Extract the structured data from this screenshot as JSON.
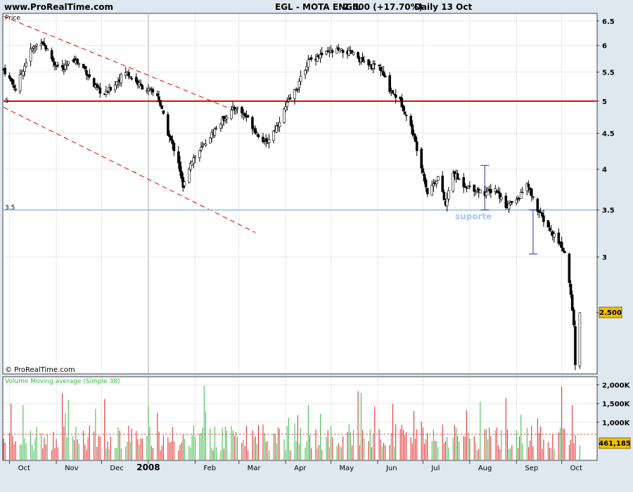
{
  "header": {
    "site": "www.ProRealTime.com",
    "instrument": "EGL - MOTA ENGIL",
    "last": "2.500 (+17.70%)",
    "period": "Daily  13 Oct"
  },
  "price_panel": {
    "label": "Price",
    "watermark": "© ProRealTime.com",
    "annotation": "suporte",
    "last_price_badge": "2.500",
    "left_marks": [
      "5",
      "3.5"
    ]
  },
  "volume_panel": {
    "label": "Volume Moving average (Simple 38)",
    "last_volume_badge": "461,185"
  },
  "colors": {
    "background": "#dfe8f1",
    "panel": "#ffffff",
    "up": "#38b648",
    "down": "#e02020",
    "resistance": "#e00000",
    "support": "#a8c8ee",
    "badge": "#f0c000"
  },
  "chart_data": [
    {
      "type": "candlestick",
      "title": "EGL - MOTA ENGIL",
      "scale": "log",
      "ylim": [
        2.05,
        6.65
      ],
      "yticks": [
        2.5,
        3,
        3.5,
        4,
        4.5,
        5,
        5.5,
        6,
        6.5
      ],
      "ytick_labels": [
        "2.500",
        "3",
        "3.5",
        "4",
        "4.5",
        "5",
        "5.5",
        "6",
        "6.5"
      ],
      "x_labels": [
        "Oct",
        "Nov",
        "Dec",
        "2008",
        "Feb",
        "Mar",
        "Apr",
        "May",
        "Jun",
        "Jul",
        "Aug",
        "Sep",
        "Oct"
      ],
      "x_dates": [
        "2007-10-01",
        "2007-11-01",
        "2007-12-01",
        "2008-01-01",
        "2008-02-01",
        "2008-03-01",
        "2008-04-01",
        "2008-05-01",
        "2008-06-01",
        "2008-07-01",
        "2008-08-01",
        "2008-09-01",
        "2008-10-01"
      ],
      "xlim": [
        "2007-09-27",
        "2008-10-24"
      ],
      "last_value": 2.5,
      "last_change": "+17.70%",
      "close_path": [
        [
          "2007-09-27",
          5.55
        ],
        [
          "2007-10-05",
          5.2
        ],
        [
          "2007-10-15",
          5.9
        ],
        [
          "2007-10-22",
          6.1
        ],
        [
          "2007-10-31",
          5.65
        ],
        [
          "2007-11-06",
          5.55
        ],
        [
          "2007-11-12",
          5.75
        ],
        [
          "2007-11-20",
          5.55
        ],
        [
          "2007-11-26",
          5.25
        ],
        [
          "2007-12-03",
          5.1
        ],
        [
          "2007-12-10",
          5.3
        ],
        [
          "2007-12-17",
          5.5
        ],
        [
          "2007-12-27",
          5.25
        ],
        [
          "2008-01-07",
          5.1
        ],
        [
          "2008-01-14",
          4.5
        ],
        [
          "2008-01-21",
          4.1
        ],
        [
          "2008-01-24",
          3.75
        ],
        [
          "2008-01-29",
          4.1
        ],
        [
          "2008-02-06",
          4.3
        ],
        [
          "2008-02-14",
          4.55
        ],
        [
          "2008-02-21",
          4.75
        ],
        [
          "2008-02-28",
          4.9
        ],
        [
          "2008-03-06",
          4.75
        ],
        [
          "2008-03-13",
          4.5
        ],
        [
          "2008-03-19",
          4.35
        ],
        [
          "2008-03-26",
          4.6
        ],
        [
          "2008-04-02",
          4.95
        ],
        [
          "2008-04-09",
          5.25
        ],
        [
          "2008-04-16",
          5.7
        ],
        [
          "2008-04-23",
          5.8
        ],
        [
          "2008-05-05",
          5.9
        ],
        [
          "2008-05-15",
          5.85
        ],
        [
          "2008-05-26",
          5.6
        ],
        [
          "2008-06-02",
          5.6
        ],
        [
          "2008-06-09",
          5.2
        ],
        [
          "2008-06-16",
          5.0
        ],
        [
          "2008-06-23",
          4.6
        ],
        [
          "2008-06-30",
          4.05
        ],
        [
          "2008-07-04",
          3.7
        ],
        [
          "2008-07-11",
          3.9
        ],
        [
          "2008-07-16",
          3.55
        ],
        [
          "2008-07-21",
          3.95
        ],
        [
          "2008-07-28",
          3.8
        ],
        [
          "2008-08-04",
          3.75
        ],
        [
          "2008-08-11",
          3.7
        ],
        [
          "2008-08-18",
          3.75
        ],
        [
          "2008-08-25",
          3.55
        ],
        [
          "2008-09-01",
          3.6
        ],
        [
          "2008-09-08",
          3.8
        ],
        [
          "2008-09-15",
          3.5
        ],
        [
          "2008-09-22",
          3.3
        ],
        [
          "2008-09-29",
          3.15
        ],
        [
          "2008-10-03",
          3.05
        ],
        [
          "2008-10-07",
          2.65
        ],
        [
          "2008-10-09",
          2.4
        ],
        [
          "2008-10-10",
          2.1
        ],
        [
          "2008-10-13",
          2.5
        ]
      ],
      "horizontal_lines": [
        {
          "name": "resistance",
          "value": 5,
          "color": "#e00000"
        },
        {
          "name": "support",
          "value": 3.5,
          "color": "#a8c8ee",
          "label": "suporte"
        }
      ],
      "trend_lines": [
        {
          "from": [
            "2007-09-27",
            6.6
          ],
          "to": [
            "2008-02-22",
            4.9
          ],
          "color": "#e00000",
          "style": "dashed"
        },
        {
          "from": [
            "2007-09-27",
            4.9
          ],
          "to": [
            "2008-03-12",
            3.25
          ],
          "color": "#e00000",
          "style": "dashed"
        }
      ],
      "measure_lines": [
        {
          "date": "2008-08-11",
          "from": 4.05,
          "to": 3.5
        },
        {
          "date": "2008-09-12",
          "from": 3.5,
          "to": 3.03
        }
      ]
    },
    {
      "type": "bar",
      "title": "Volume Moving average (Simple 38)",
      "ylim": [
        0,
        2200
      ],
      "yticks": [
        1000,
        1500,
        2000
      ],
      "ytick_labels": [
        "1,000K",
        "1,500K",
        "2,000K"
      ],
      "last_value": 461185,
      "moving_average": "Simple 38",
      "moving_average_level": 680
    }
  ]
}
